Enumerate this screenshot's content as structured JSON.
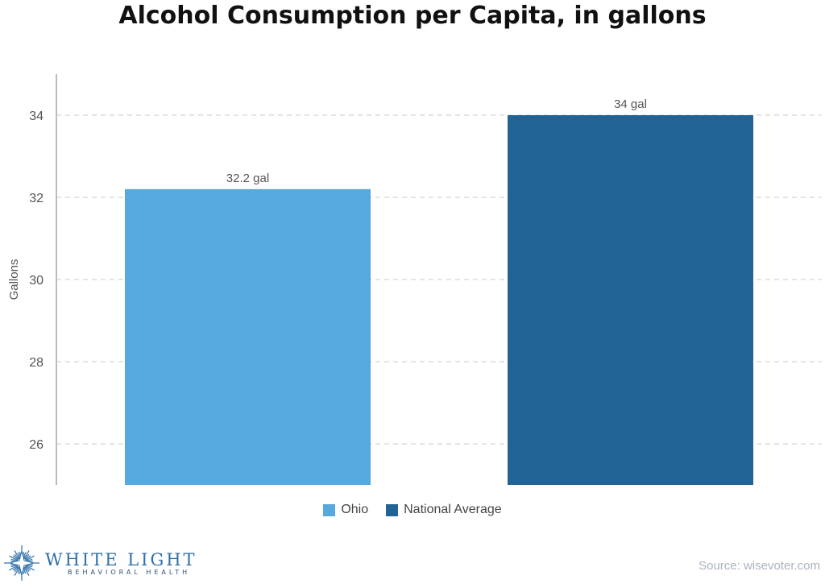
{
  "chart_data": {
    "type": "bar",
    "title": "Alcohol Consumption per Capita, in gallons",
    "categories": [
      "Ohio",
      "National Average"
    ],
    "values": [
      32.2,
      34
    ],
    "data_labels": [
      "32.2 gal",
      "34 gal"
    ],
    "colors": [
      "#56a9df",
      "#226396"
    ],
    "ylabel": "Gallons",
    "xlabel": "",
    "ylim": [
      25,
      35
    ],
    "yticks": [
      26,
      28,
      30,
      32,
      34
    ],
    "grid": true,
    "legend": {
      "placement": "bottom",
      "entries": [
        {
          "label": "Ohio",
          "color": "#56a9df"
        },
        {
          "label": "National Average",
          "color": "#226396"
        }
      ]
    }
  },
  "branding": {
    "logo_main": "WHITE LIGHT",
    "logo_sub": "BEHAVIORAL HEALTH",
    "logo_icon": "starburst-icon",
    "logo_color": "#2e6fa8"
  },
  "source": "Source: wisevoter.com"
}
